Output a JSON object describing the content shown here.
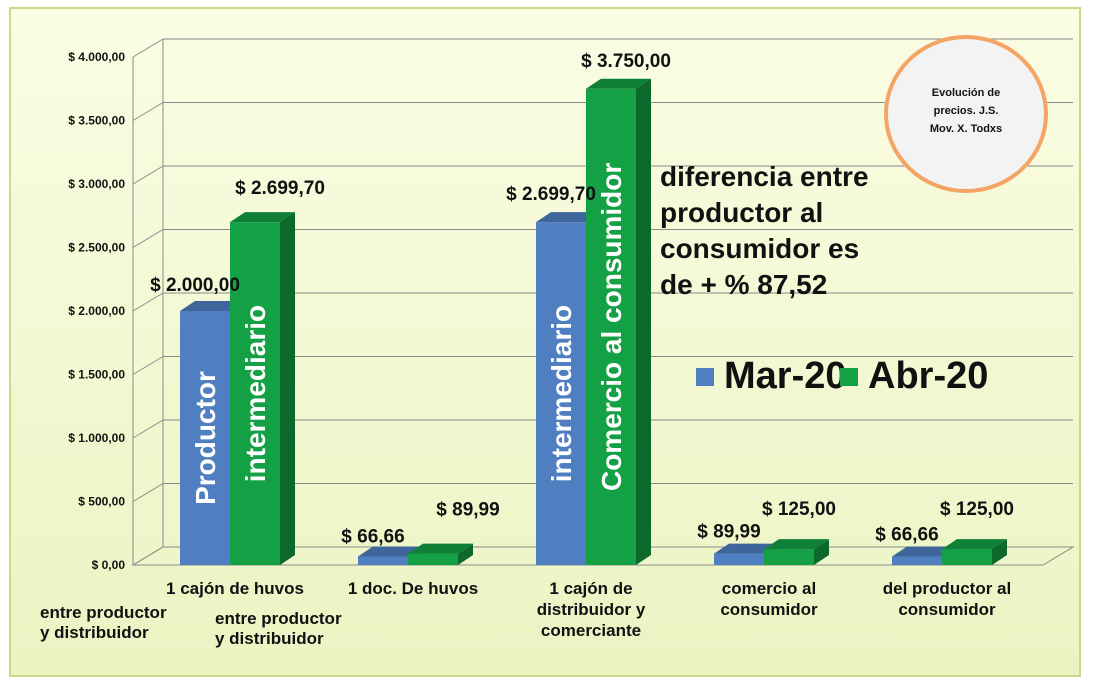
{
  "chart_data": {
    "type": "bar",
    "y_ticks": [
      "$ 0,00",
      "$ 500,00",
      "$ 1.000,00",
      "$ 1.500,00",
      "$ 2.000,00",
      "$ 2.500,00",
      "$ 3.000,00",
      "$ 3.500,00",
      "$ 4.000,00"
    ],
    "ylim": [
      0,
      4000
    ],
    "grid": true,
    "legend_position": "right",
    "categories": [
      [
        "1 cajón de huvos"
      ],
      [
        "1 doc. De huvos"
      ],
      [
        "1 cajón de",
        "distribuidor y",
        "comerciante"
      ],
      [
        "comercio al",
        "consumidor"
      ],
      [
        "del productor al",
        "consumidor"
      ]
    ],
    "series": [
      {
        "name": "Mar-20",
        "color": "#4f7fc0",
        "values": [
          2000.0,
          66.66,
          2699.7,
          89.99,
          66.66
        ],
        "labels": [
          "$ 2.000,00",
          "$ 66,66",
          "$ 2.699,70",
          "$ 89,99",
          "$ 66,66"
        ]
      },
      {
        "name": "Abr-20",
        "color": "#14a044",
        "values": [
          2699.7,
          89.99,
          3750.0,
          125.0,
          125.0
        ],
        "labels": [
          "$ 2.699,70",
          "$ 89,99",
          "$ 3.750,00",
          "$ 125,00",
          "$ 125,00"
        ]
      }
    ],
    "bar_texts": [
      {
        "cat": 0,
        "series": 0,
        "text": "Productor"
      },
      {
        "cat": 0,
        "series": 1,
        "text": "intermediario"
      },
      {
        "cat": 2,
        "series": 0,
        "text": "intermediario"
      },
      {
        "cat": 2,
        "series": 1,
        "text": "Comercio  al  consumidor"
      }
    ],
    "sub_labels": [
      {
        "cat": 0,
        "series": 0,
        "lines": [
          "entre productor",
          " y distribuidor"
        ]
      },
      {
        "cat": 0,
        "series": 1,
        "lines": [
          "entre productor",
          "y distribuidor"
        ]
      }
    ],
    "annotation": [
      "diferencia entre",
      "productor al",
      "consumidor  es",
      "de + % 87,52"
    ],
    "stamp": [
      "Evolución de",
      "precios. J.S.",
      "Mov. X. Todxs"
    ]
  },
  "colors": {
    "background_top": "#fbfde4",
    "background_bottom": "#eaf4c2",
    "frame_border": "#c9d98c",
    "grid": "#8a8a8a",
    "stamp_border": "#f4a464",
    "stamp_fill": "#f3f3f3"
  }
}
